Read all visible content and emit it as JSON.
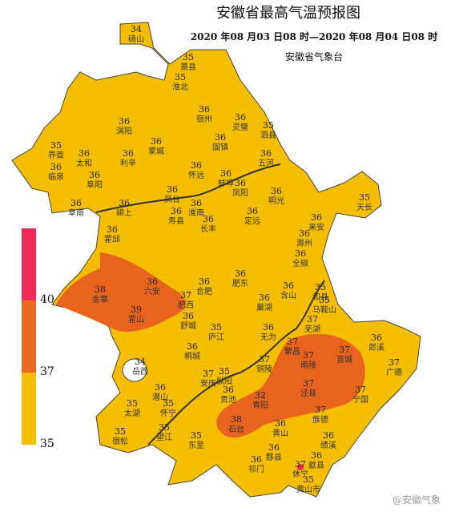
{
  "header": {
    "title": "安徽省最高气温预报图",
    "time_range": "2020 年08 月03 日08 时—2020 年08 月04 日08 时",
    "issuer": "安徽省气象台"
  },
  "legend": {
    "levels": [
      40,
      37,
      35
    ]
  },
  "stations": [
    {
      "name": "砀山",
      "temp": 34
    },
    {
      "name": "淮北",
      "temp": 35
    },
    {
      "name": "萧县",
      "temp": 35
    },
    {
      "name": "宿州",
      "temp": 36
    },
    {
      "name": "灵璧",
      "temp": 36
    },
    {
      "name": "泗县",
      "temp": 35
    },
    {
      "name": "涡阳",
      "temp": 36
    },
    {
      "name": "蒙城",
      "temp": 36
    },
    {
      "name": "固镇",
      "temp": 36
    },
    {
      "name": "界首",
      "temp": 35
    },
    {
      "name": "太和",
      "temp": 36
    },
    {
      "name": "利辛",
      "temp": 36
    },
    {
      "name": "临泉",
      "temp": 36
    },
    {
      "name": "阜阳",
      "temp": 36
    },
    {
      "name": "怀远",
      "temp": 36
    },
    {
      "name": "蚌埠",
      "temp": 36
    },
    {
      "name": "五河",
      "temp": 36
    },
    {
      "name": "凤阳",
      "temp": 36
    },
    {
      "name": "明光",
      "temp": 36
    },
    {
      "name": "阜南",
      "temp": 36
    },
    {
      "name": "颍上",
      "temp": 36
    },
    {
      "name": "淮南",
      "temp": 36
    },
    {
      "name": "定远",
      "temp": 36
    },
    {
      "name": "凤台",
      "temp": 36
    },
    {
      "name": "天长",
      "temp": 35
    },
    {
      "name": "来安",
      "temp": 36
    },
    {
      "name": "霍邱",
      "temp": 36
    },
    {
      "name": "寿县",
      "temp": 36
    },
    {
      "name": "长丰",
      "temp": 36
    },
    {
      "name": "滁州",
      "temp": 36
    },
    {
      "name": "全椒",
      "temp": 36
    },
    {
      "name": "六安",
      "temp": 36
    },
    {
      "name": "合肥",
      "temp": 36
    },
    {
      "name": "肥东",
      "temp": 36
    },
    {
      "name": "含山",
      "temp": 36
    },
    {
      "name": "和县",
      "temp": 35
    },
    {
      "name": "金寨",
      "temp": 38
    },
    {
      "name": "霍山",
      "temp": 39
    },
    {
      "name": "肥西",
      "temp": 37
    },
    {
      "name": "巢湖",
      "temp": 36
    },
    {
      "name": "马鞍山",
      "temp": 35
    },
    {
      "name": "舒城",
      "temp": 36
    },
    {
      "name": "庐江",
      "temp": 35
    },
    {
      "name": "无为",
      "temp": 36
    },
    {
      "name": "芜湖",
      "temp": 37
    },
    {
      "name": "郎溪",
      "temp": 36
    },
    {
      "name": "广德",
      "temp": 37
    },
    {
      "name": "宣城",
      "temp": 37
    },
    {
      "name": "岳西",
      "temp": 34
    },
    {
      "name": "桐城",
      "temp": 36
    },
    {
      "name": "枞阳",
      "temp": 35
    },
    {
      "name": "铜陵",
      "temp": 37
    },
    {
      "name": "南陵",
      "temp": 37
    },
    {
      "name": "繁昌",
      "temp": 37
    },
    {
      "name": "泾县",
      "temp": 37
    },
    {
      "name": "潜山",
      "temp": 36
    },
    {
      "name": "安庆",
      "temp": 37
    },
    {
      "name": "太湖",
      "temp": 35
    },
    {
      "name": "怀宁",
      "temp": 35
    },
    {
      "name": "贵池",
      "temp": 36
    },
    {
      "name": "青阳",
      "temp": 32
    },
    {
      "name": "宁国",
      "temp": 37
    },
    {
      "name": "旌德",
      "temp": 37
    },
    {
      "name": "宿松",
      "temp": 35
    },
    {
      "name": "望江",
      "temp": 35
    },
    {
      "name": "东至",
      "temp": 35
    },
    {
      "name": "石台",
      "temp": 38
    },
    {
      "name": "黄山",
      "temp": 36
    },
    {
      "name": "绩溪",
      "temp": 36
    },
    {
      "name": "祁门",
      "temp": 36
    },
    {
      "name": "黟县",
      "temp": 36
    },
    {
      "name": "歙县",
      "temp": 36
    },
    {
      "name": "休宁",
      "temp": 37
    },
    {
      "name": "黄山市",
      "temp": 35
    }
  ],
  "watermark": "@安徽气象"
}
